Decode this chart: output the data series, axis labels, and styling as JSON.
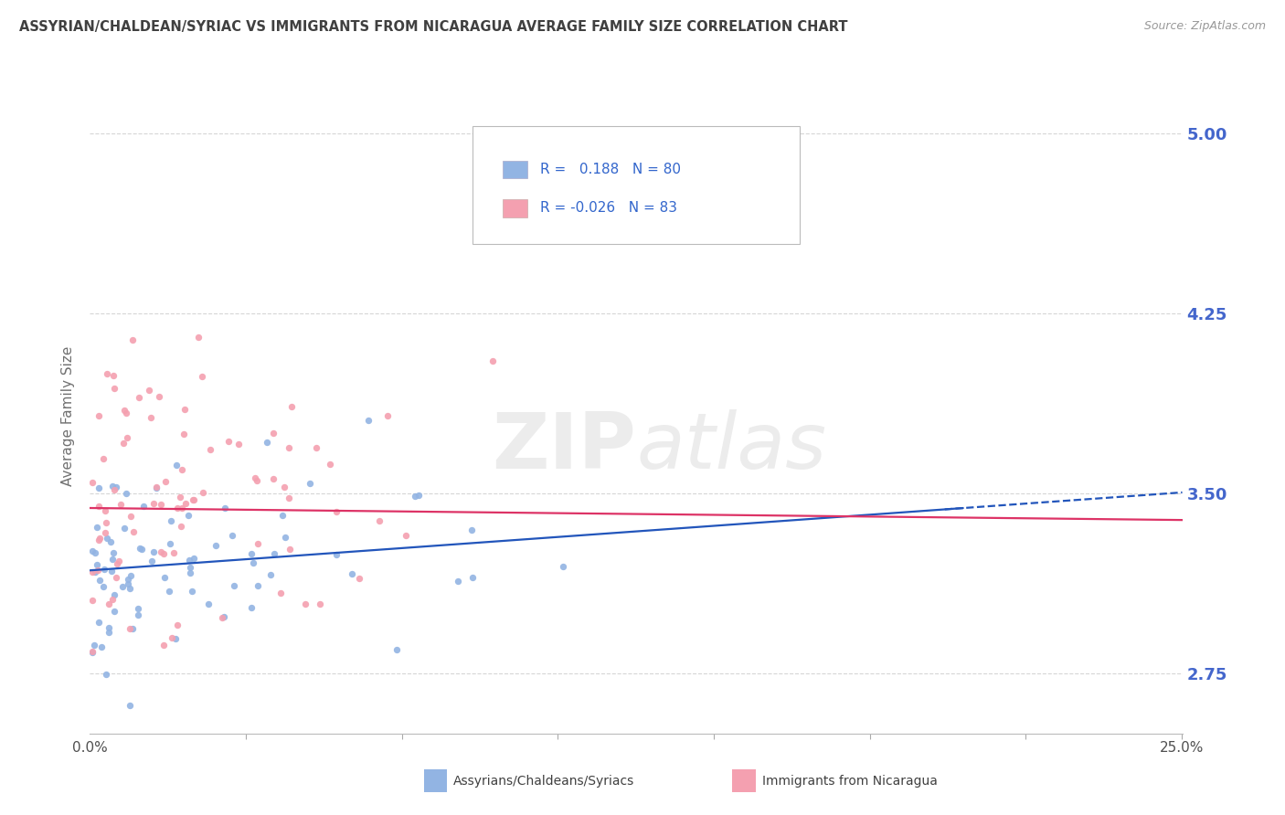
{
  "title": "ASSYRIAN/CHALDEAN/SYRIAC VS IMMIGRANTS FROM NICARAGUA AVERAGE FAMILY SIZE CORRELATION CHART",
  "source": "Source: ZipAtlas.com",
  "ylabel": "Average Family Size",
  "ymin": 2.5,
  "ymax": 5.15,
  "xmin": 0.0,
  "xmax": 25.0,
  "yticks": [
    2.75,
    3.5,
    4.25,
    5.0
  ],
  "series1_label": "Assyrians/Chaldeans/Syriacs",
  "series2_label": "Immigrants from Nicaragua",
  "series1_R": "0.188",
  "series1_N": "80",
  "series2_R": "-0.026",
  "series2_N": "83",
  "series1_color": "#92b4e3",
  "series2_color": "#f4a0b0",
  "trend1_color": "#2255bb",
  "trend2_color": "#dd3366",
  "background_color": "#ffffff",
  "grid_color": "#cccccc",
  "title_color": "#404040",
  "axis_label_color": "#4466cc",
  "legend_value_color": "#3366cc",
  "watermark": "ZIPatlas",
  "trend1_slope": 0.013,
  "trend1_intercept": 3.18,
  "trend2_slope": -0.002,
  "trend2_intercept": 3.44,
  "trend_solid_end": 20.0,
  "trend_dashed_start": 19.5
}
